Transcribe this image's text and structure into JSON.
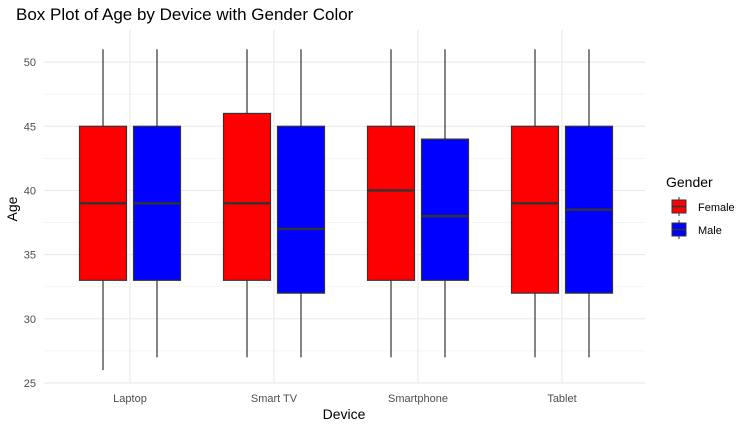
{
  "chart_data": {
    "type": "box",
    "title": "Box Plot of Age by Device with Gender Color",
    "xlabel": "Device",
    "ylabel": "Age",
    "categories": [
      "Laptop",
      "Smart TV",
      "Smartphone",
      "Tablet"
    ],
    "ylim": [
      25,
      52.5
    ],
    "yticks": [
      25,
      30,
      35,
      40,
      45,
      50
    ],
    "grid": true,
    "legend": {
      "title": "Gender",
      "position": "right"
    },
    "series": [
      {
        "name": "Female",
        "color": "#ff0000",
        "boxes": [
          {
            "min": 26,
            "q1": 33,
            "median": 39,
            "q3": 45,
            "max": 51
          },
          {
            "min": 27,
            "q1": 33,
            "median": 39,
            "q3": 46,
            "max": 51
          },
          {
            "min": 27,
            "q1": 33,
            "median": 40,
            "q3": 45,
            "max": 51
          },
          {
            "min": 27,
            "q1": 32,
            "median": 39,
            "q3": 45,
            "max": 51
          }
        ]
      },
      {
        "name": "Male",
        "color": "#0000ff",
        "boxes": [
          {
            "min": 27,
            "q1": 33,
            "median": 39,
            "q3": 45,
            "max": 51
          },
          {
            "min": 27,
            "q1": 32,
            "median": 37,
            "q3": 45,
            "max": 51
          },
          {
            "min": 27,
            "q1": 33,
            "median": 38,
            "q3": 44,
            "max": 51
          },
          {
            "min": 27,
            "q1": 32,
            "median": 38.5,
            "q3": 45,
            "max": 51
          }
        ]
      }
    ]
  }
}
